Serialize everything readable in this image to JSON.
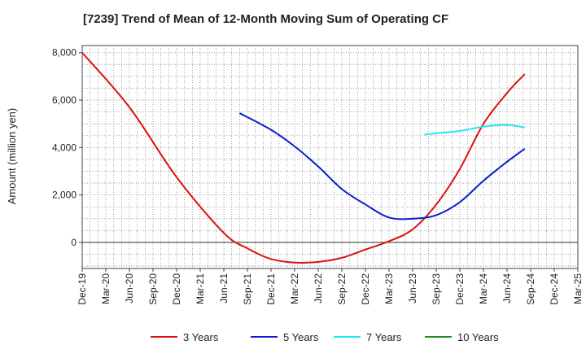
{
  "chart_data": {
    "type": "line",
    "title": "[7239]  Trend of Mean of 12-Month Moving Sum of Operating CF",
    "xlabel": "",
    "ylabel": "Amount (million yen)",
    "ylim": [
      -1100,
      8300
    ],
    "yticks": [
      0,
      2000,
      4000,
      6000,
      8000
    ],
    "ytick_labels": [
      "0",
      "2,000",
      "4,000",
      "6,000",
      "8,000"
    ],
    "x_categories": [
      "Dec-19",
      "Mar-20",
      "Jun-20",
      "Sep-20",
      "Dec-20",
      "Mar-21",
      "Jun-21",
      "Sep-21",
      "Dec-21",
      "Mar-22",
      "Jun-22",
      "Sep-22",
      "Dec-22",
      "Mar-23",
      "Jun-23",
      "Sep-23",
      "Dec-23",
      "Mar-24",
      "Jun-24",
      "Sep-24",
      "Dec-24",
      "Mar-25"
    ],
    "grid": true,
    "legend_position": "bottom",
    "series": [
      {
        "name": "3 Years",
        "color": "#dd1111",
        "points": [
          [
            0,
            8000
          ],
          [
            2,
            5700
          ],
          [
            4,
            2750
          ],
          [
            6,
            400
          ],
          [
            7,
            -250
          ],
          [
            8,
            -700
          ],
          [
            9,
            -850
          ],
          [
            10,
            -820
          ],
          [
            11,
            -650
          ],
          [
            12,
            -300
          ],
          [
            13,
            50
          ],
          [
            14,
            550
          ],
          [
            15,
            1600
          ],
          [
            16,
            3100
          ],
          [
            17,
            5000
          ],
          [
            18,
            6300
          ],
          [
            18.75,
            7100
          ]
        ]
      },
      {
        "name": "5 Years",
        "color": "#0a1ecc",
        "points": [
          [
            6.67,
            5450
          ],
          [
            8,
            4750
          ],
          [
            9,
            4050
          ],
          [
            10,
            3200
          ],
          [
            11,
            2250
          ],
          [
            12,
            1600
          ],
          [
            13,
            1050
          ],
          [
            14,
            1000
          ],
          [
            15,
            1150
          ],
          [
            16,
            1700
          ],
          [
            17,
            2600
          ],
          [
            18,
            3400
          ],
          [
            18.75,
            3950
          ]
        ]
      },
      {
        "name": "7 Years",
        "color": "#22e6ee",
        "points": [
          [
            14.5,
            4550
          ],
          [
            15,
            4600
          ],
          [
            16,
            4700
          ],
          [
            17,
            4880
          ],
          [
            18,
            4950
          ],
          [
            18.75,
            4850
          ]
        ]
      },
      {
        "name": "10 Years",
        "color": "#228b22",
        "points": []
      }
    ]
  }
}
